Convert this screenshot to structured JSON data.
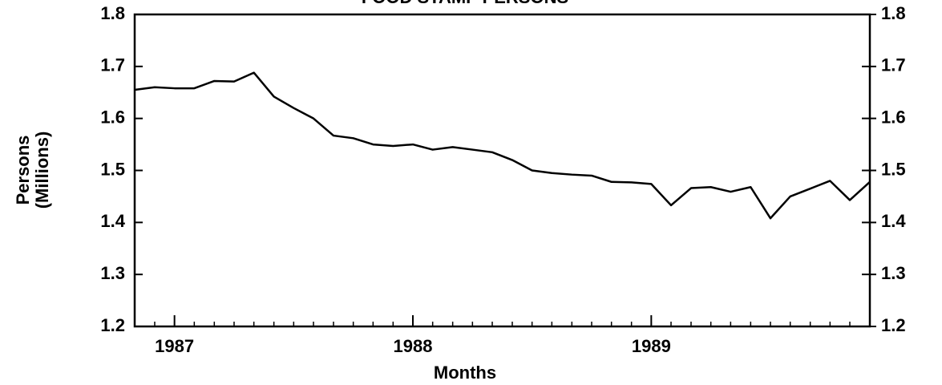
{
  "chart_data": {
    "type": "line",
    "title": "FOOD STAMP PERSONS",
    "xlabel": "Months",
    "ylabel": [
      "Persons",
      "(Millions)"
    ],
    "x": [
      1986.833,
      1986.917,
      1987.0,
      1987.083,
      1987.167,
      1987.25,
      1987.333,
      1987.417,
      1987.5,
      1987.583,
      1987.667,
      1987.75,
      1987.833,
      1987.917,
      1988.0,
      1988.083,
      1988.167,
      1988.25,
      1988.333,
      1988.417,
      1988.5,
      1988.583,
      1988.667,
      1988.75,
      1988.833,
      1988.917,
      1989.0,
      1989.083,
      1989.167,
      1989.25,
      1989.333,
      1989.417,
      1989.5,
      1989.583,
      1989.667,
      1989.75,
      1989.833,
      1989.917
    ],
    "series": [
      {
        "name": "Persons",
        "color": "#000000",
        "values": [
          1.655,
          1.66,
          1.658,
          1.658,
          1.672,
          1.671,
          1.688,
          1.642,
          1.62,
          1.6,
          1.567,
          1.562,
          1.55,
          1.547,
          1.55,
          1.54,
          1.545,
          1.54,
          1.535,
          1.52,
          1.5,
          1.495,
          1.492,
          1.49,
          1.478,
          1.477,
          1.474,
          1.433,
          1.466,
          1.468,
          1.459,
          1.468,
          1.408,
          1.45,
          1.465,
          1.48,
          1.443,
          1.478
        ]
      }
    ],
    "xlim": [
      1986.833,
      1989.917
    ],
    "xticks": [
      1987,
      1988,
      1989
    ],
    "ylim": [
      1.2,
      1.8
    ],
    "yticks": [
      1.2,
      1.3,
      1.4,
      1.5,
      1.6,
      1.7,
      1.8
    ],
    "y2lim": [
      1.2,
      1.8
    ],
    "y2ticks": [
      1.2,
      1.3,
      1.4,
      1.5,
      1.6,
      1.7,
      1.8
    ],
    "grid": false
  }
}
